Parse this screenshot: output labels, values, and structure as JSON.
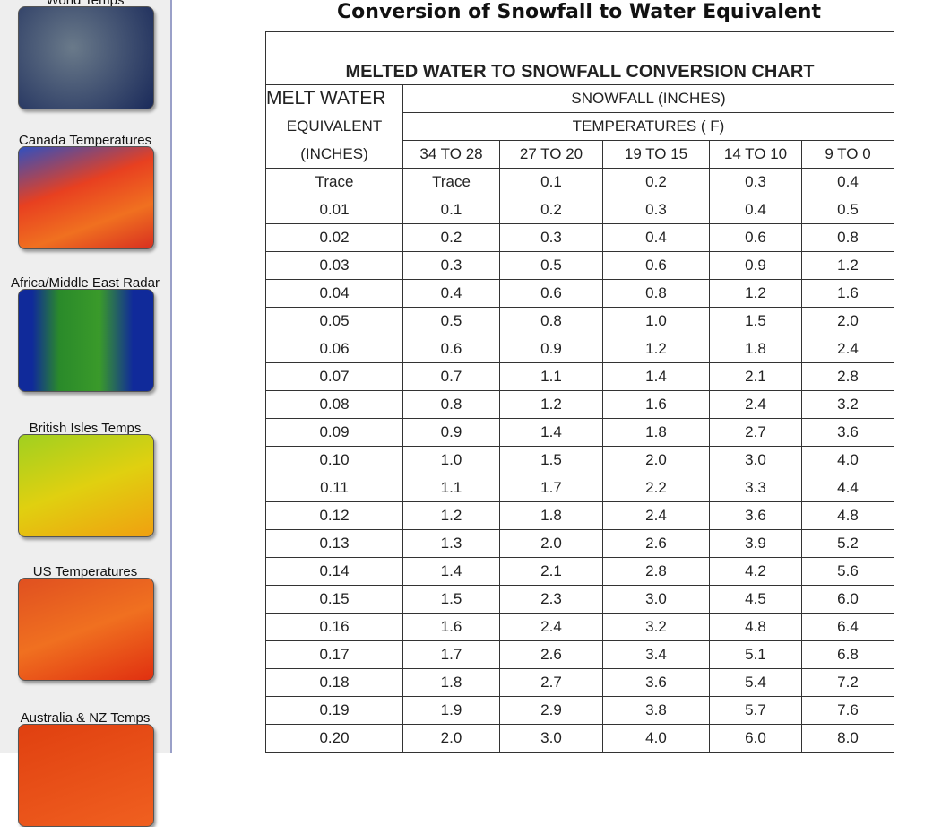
{
  "sidebar": {
    "items": [
      {
        "label": "World Temps"
      },
      {
        "label": "Canada Temperatures"
      },
      {
        "label": "Africa/Middle East Radar"
      },
      {
        "label": "British Isles Temps"
      },
      {
        "label": "US Temperatures"
      },
      {
        "label": "Australia & NZ Temps"
      }
    ]
  },
  "header": {
    "title": "Conversion of Snowfall to Water Equivalent"
  },
  "table": {
    "caption": "MELTED WATER TO SNOWFALL CONVERSION CHART",
    "row_header": [
      "MELT WATER",
      "EQUIVALENT",
      "(INCHES)"
    ],
    "group_header": "SNOWFALL (INCHES)",
    "sub_header": "TEMPERATURES ( F)",
    "columns": [
      "34  TO 28",
      "27  TO 20",
      "19  TO  15",
      "14  TO 10",
      "9  TO  0"
    ],
    "rows": [
      [
        "Trace",
        "Trace",
        "0.1",
        "0.2",
        "0.3",
        "0.4"
      ],
      [
        "0.01",
        "0.1",
        "0.2",
        "0.3",
        "0.4",
        "0.5"
      ],
      [
        "0.02",
        "0.2",
        "0.3",
        "0.4",
        "0.6",
        "0.8"
      ],
      [
        "0.03",
        "0.3",
        "0.5",
        "0.6",
        "0.9",
        "1.2"
      ],
      [
        "0.04",
        "0.4",
        "0.6",
        "0.8",
        "1.2",
        "1.6"
      ],
      [
        "0.05",
        "0.5",
        "0.8",
        "1.0",
        "1.5",
        "2.0"
      ],
      [
        "0.06",
        "0.6",
        "0.9",
        "1.2",
        "1.8",
        "2.4"
      ],
      [
        "0.07",
        "0.7",
        "1.1",
        "1.4",
        "2.1",
        "2.8"
      ],
      [
        "0.08",
        "0.8",
        "1.2",
        "1.6",
        "2.4",
        "3.2"
      ],
      [
        "0.09",
        "0.9",
        "1.4",
        "1.8",
        "2.7",
        "3.6"
      ],
      [
        "0.10",
        "1.0",
        "1.5",
        "2.0",
        "3.0",
        "4.0"
      ],
      [
        "0.11",
        "1.1",
        "1.7",
        "2.2",
        "3.3",
        "4.4"
      ],
      [
        "0.12",
        "1.2",
        "1.8",
        "2.4",
        "3.6",
        "4.8"
      ],
      [
        "0.13",
        "1.3",
        "2.0",
        "2.6",
        "3.9",
        "5.2"
      ],
      [
        "0.14",
        "1.4",
        "2.1",
        "2.8",
        "4.2",
        "5.6"
      ],
      [
        "0.15",
        "1.5",
        "2.3",
        "3.0",
        "4.5",
        "6.0"
      ],
      [
        "0.16",
        "1.6",
        "2.4",
        "3.2",
        "4.8",
        "6.4"
      ],
      [
        "0.17",
        "1.7",
        "2.6",
        "3.4",
        "5.1",
        "6.8"
      ],
      [
        "0.18",
        "1.8",
        "2.7",
        "3.6",
        "5.4",
        "7.2"
      ],
      [
        "0.19",
        "1.9",
        "2.9",
        "3.8",
        "5.7",
        "7.6"
      ],
      [
        "0.20",
        "2.0",
        "3.0",
        "4.0",
        "6.0",
        "8.0"
      ]
    ]
  }
}
